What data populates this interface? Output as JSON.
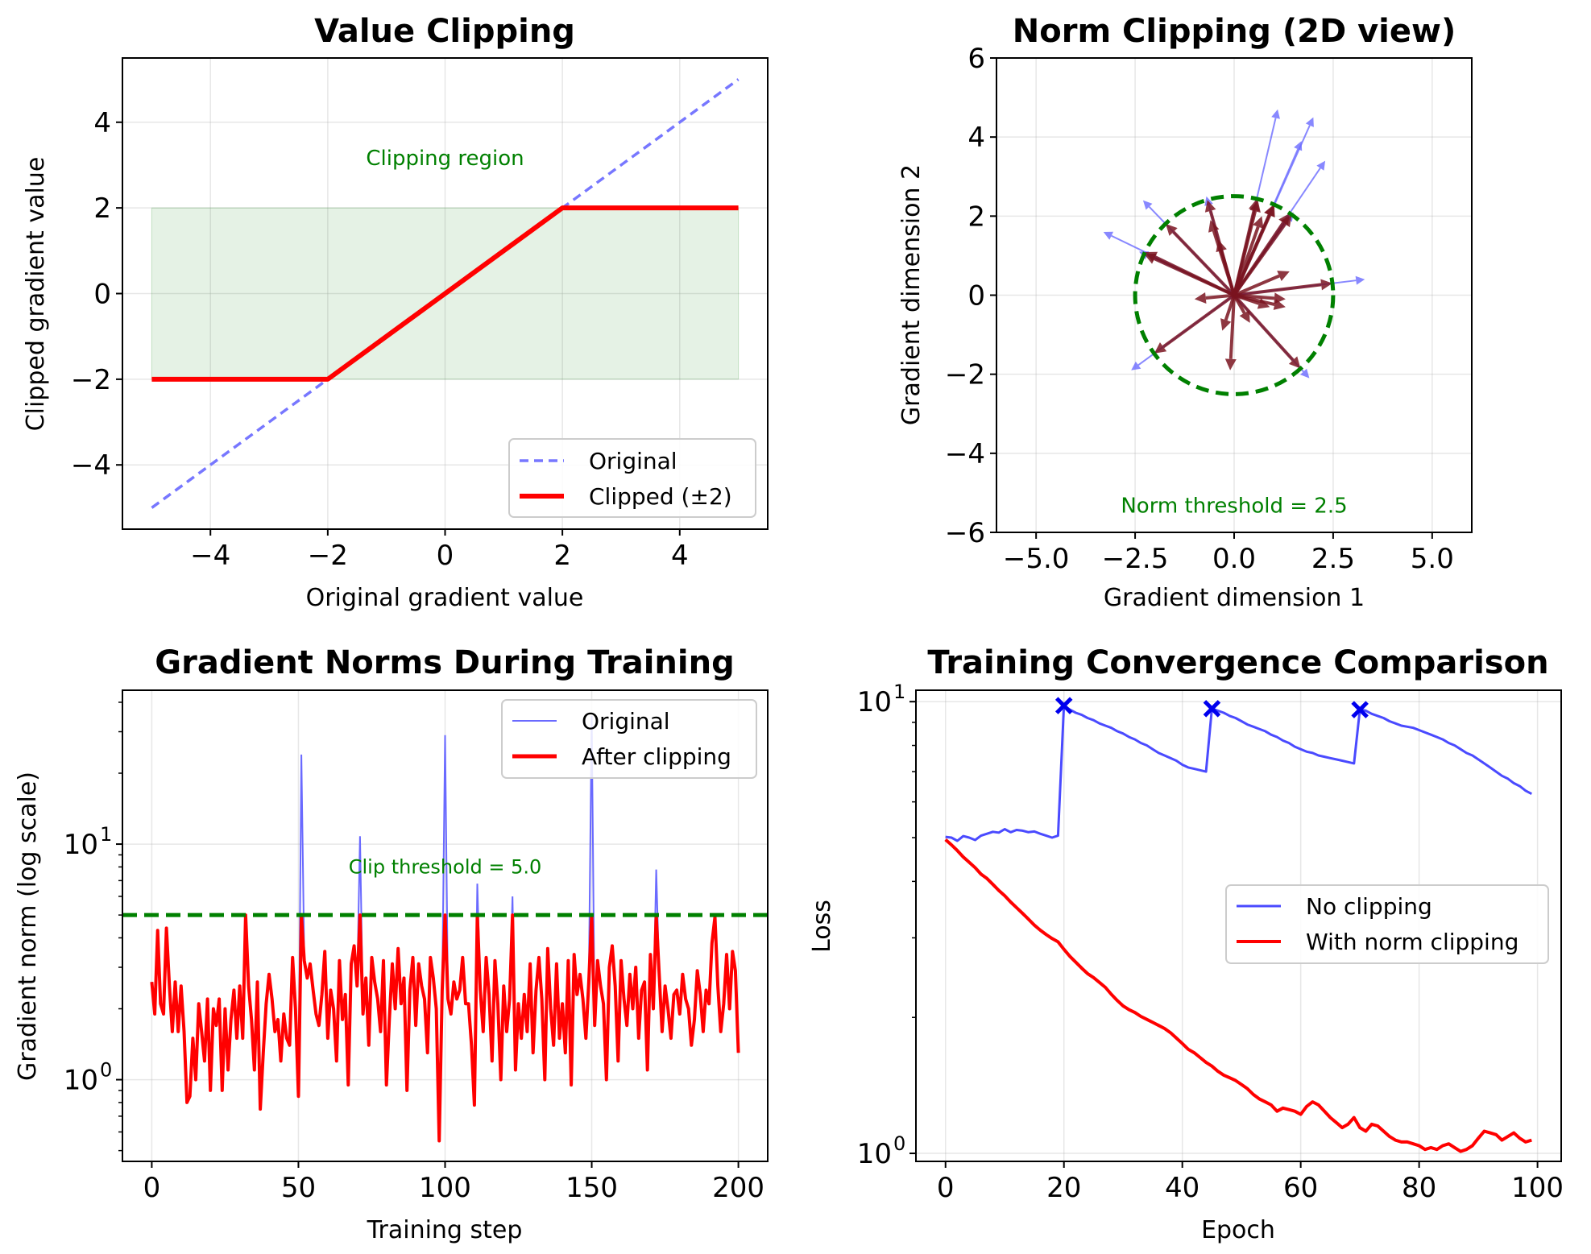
{
  "chart_data": [
    {
      "type": "line",
      "title": "Value Clipping",
      "xlabel": "Original gradient value",
      "ylabel": "Clipped gradient value",
      "xlim": [
        -5.5,
        5.5
      ],
      "ylim": [
        -5.5,
        5.5
      ],
      "xticks": [
        -4,
        -2,
        0,
        2,
        4
      ],
      "yticks": [
        -4,
        -2,
        0,
        2,
        4
      ],
      "xtick_labels": [
        "−4",
        "−2",
        "0",
        "2",
        "4"
      ],
      "ytick_labels": [
        "−4",
        "−2",
        "0",
        "2",
        "4"
      ],
      "shaded_region": {
        "x": [
          -5,
          5
        ],
        "y": [
          -2,
          2
        ],
        "color": "#008000"
      },
      "series": [
        {
          "name": "Original",
          "color": "#7777ff",
          "style": "dashed",
          "x": [
            -5,
            5
          ],
          "y": [
            -5,
            5
          ]
        },
        {
          "name": "Clipped (±2)",
          "color": "#ff0000",
          "style": "solid",
          "x": [
            -5,
            -2,
            2,
            5
          ],
          "y": [
            -2,
            -2,
            2,
            2
          ]
        }
      ],
      "annotation": {
        "text": "Clipping region",
        "x": 0,
        "y": 3.0
      },
      "legend": "bottom-right",
      "grid": true
    },
    {
      "type": "scatter",
      "subtype": "vector-field",
      "title": "Norm Clipping (2D view)",
      "xlabel": "Gradient dimension 1",
      "ylabel": "Gradient dimension 2",
      "xlim": [
        -6,
        6
      ],
      "ylim": [
        -6,
        6
      ],
      "xticks": [
        -5,
        -2.5,
        0,
        2.5,
        5
      ],
      "yticks": [
        -6,
        -4,
        -2,
        0,
        2,
        4,
        6
      ],
      "xtick_labels": [
        "−5.0",
        "−2.5",
        "0.0",
        "2.5",
        "5.0"
      ],
      "ytick_labels": [
        "−6",
        "−4",
        "−2",
        "0",
        "2",
        "4",
        "6"
      ],
      "threshold": 2.5,
      "annotation": {
        "text": "Norm threshold = 2.5",
        "x": 0,
        "y": -5.5
      },
      "original_color": "#6a6aff",
      "clipped_color": "#7a1420",
      "circle_color": "#008000",
      "vectors": [
        [
          1.1,
          4.7
        ],
        [
          2.0,
          4.5
        ],
        [
          1.7,
          3.9
        ],
        [
          2.3,
          3.4
        ],
        [
          -2.3,
          2.4
        ],
        [
          -3.3,
          1.6
        ],
        [
          3.3,
          0.4
        ],
        [
          -2.6,
          -1.9
        ],
        [
          1.9,
          -2.1
        ],
        [
          -0.7,
          2.5
        ],
        [
          -0.6,
          1.9
        ],
        [
          0.6,
          2.4
        ],
        [
          1.5,
          2.1
        ],
        [
          1.4,
          0.6
        ],
        [
          1.3,
          -0.3
        ],
        [
          1.3,
          -0.1
        ],
        [
          -1.0,
          -0.1
        ],
        [
          -0.1,
          -1.9
        ],
        [
          0.4,
          -0.7
        ],
        [
          -0.3,
          -0.9
        ],
        [
          -2.4,
          1.1
        ],
        [
          0.7,
          2.0
        ],
        [
          0.9,
          -0.3
        ],
        [
          -0.4,
          1.4
        ]
      ],
      "grid": true
    },
    {
      "type": "line",
      "title": "Gradient Norms During Training",
      "xlabel": "Training step",
      "ylabel": "Gradient norm (log scale)",
      "yscale": "log",
      "xlim": [
        -10,
        210
      ],
      "ylim": [
        0.45,
        45
      ],
      "xticks": [
        0,
        50,
        100,
        150,
        200
      ],
      "xtick_labels": [
        "0",
        "50",
        "100",
        "150",
        "200"
      ],
      "ytick_major": [
        {
          "value": 1,
          "base": "10",
          "exp": "0"
        },
        {
          "value": 10,
          "base": "10",
          "exp": "1"
        }
      ],
      "clip_threshold": 5.0,
      "annotation": {
        "text": "Clip threshold = 5.0",
        "x": 100,
        "y": 7.5
      },
      "series": [
        {
          "name": "Original",
          "color": "#6a6aff"
        },
        {
          "name": "After clipping",
          "color": "#ff0000"
        }
      ],
      "values": [
        2.6,
        1.9,
        4.3,
        2.1,
        1.9,
        4.4,
        2.5,
        1.6,
        2.6,
        1.6,
        2.5,
        1.6,
        0.8,
        0.85,
        1.5,
        1.0,
        2.1,
        1.6,
        1.2,
        2.2,
        0.9,
        2.0,
        1.7,
        2.2,
        0.9,
        2.0,
        1.1,
        1.8,
        2.4,
        1.5,
        2.5,
        1.5,
        5.0,
        2.5,
        1.8,
        1.1,
        2.6,
        0.75,
        1.3,
        2.1,
        2.8,
        2.2,
        1.6,
        1.8,
        1.2,
        1.9,
        1.5,
        1.4,
        3.3,
        2.0,
        0.85,
        24,
        3.2,
        2.7,
        3.1,
        2.4,
        1.9,
        1.7,
        2.3,
        3.5,
        1.5,
        2.4,
        2.0,
        1.2,
        3.2,
        1.8,
        2.3,
        0.95,
        3.1,
        3.7,
        2.5,
        10.8,
        1.9,
        2.7,
        1.4,
        3.3,
        2.6,
        2.2,
        1.6,
        3.2,
        0.95,
        1.8,
        3.1,
        2.0,
        3.6,
        2.1,
        2.7,
        0.9,
        2.4,
        3.3,
        1.7,
        3.1,
        2.5,
        2.2,
        1.3,
        3.3,
        2.7,
        2.0,
        0.55,
        2.4,
        29,
        2.2,
        1.9,
        2.6,
        2.2,
        2.4,
        3.3,
        2.1,
        2.1,
        1.4,
        0.78,
        6.8,
        2.4,
        1.6,
        3.3,
        2.3,
        1.2,
        3.2,
        2.1,
        1.0,
        2.5,
        1.6,
        2.2,
        6.0,
        1.1,
        2.1,
        1.5,
        2.3,
        1.6,
        3.1,
        1.3,
        2.4,
        3.3,
        2.2,
        1.0,
        3.6,
        2.0,
        1.4,
        3.1,
        1.5,
        2.1,
        1.3,
        3.2,
        0.95,
        3.4,
        2.3,
        2.8,
        2.2,
        1.5,
        2.6,
        35,
        1.7,
        3.2,
        2.5,
        2.1,
        1.0,
        3.0,
        3.7,
        2.5,
        1.2,
        3.2,
        2.2,
        1.7,
        2.8,
        2.0,
        3.0,
        1.5,
        2.4,
        2.6,
        1.1,
        3.4,
        2.0,
        7.8,
        2.8,
        1.6,
        2.5,
        2.0,
        1.5,
        2.3,
        2.4,
        1.9,
        2.8,
        2.2,
        2.0,
        1.4,
        1.8,
        2.9,
        2.3,
        1.6,
        2.4,
        2.1,
        3.8,
        4.9,
        2.5,
        1.6,
        2.1,
        3.4,
        2.0,
        3.5,
        2.9,
        1.3
      ],
      "legend": "top-right",
      "grid": true
    },
    {
      "type": "line",
      "title": "Training Convergence Comparison",
      "xlabel": "Epoch",
      "ylabel": "Loss",
      "yscale": "log",
      "xlim": [
        -5,
        104
      ],
      "ylim": [
        0.96,
        10.6
      ],
      "xticks": [
        0,
        20,
        40,
        60,
        80,
        100
      ],
      "xtick_labels": [
        "0",
        "20",
        "40",
        "60",
        "80",
        "100"
      ],
      "ytick_major": [
        {
          "value": 1,
          "base": "10",
          "exp": "0"
        },
        {
          "value": 10,
          "base": "10",
          "exp": "1"
        }
      ],
      "spike_epochs": [
        20,
        45,
        70
      ],
      "series": [
        {
          "name": "No clipping",
          "color": "#4a4aff",
          "values": [
            5.02,
            5.0,
            4.92,
            5.04,
            5.0,
            4.94,
            5.05,
            5.1,
            5.15,
            5.13,
            5.22,
            5.14,
            5.2,
            5.18,
            5.14,
            5.16,
            5.1,
            5.05,
            5.0,
            5.05,
            9.8,
            9.6,
            9.45,
            9.35,
            9.2,
            9.1,
            8.95,
            8.85,
            8.75,
            8.6,
            8.5,
            8.35,
            8.25,
            8.1,
            8.0,
            7.85,
            7.7,
            7.6,
            7.5,
            7.4,
            7.25,
            7.15,
            7.1,
            7.05,
            7.0,
            9.65,
            9.55,
            9.45,
            9.3,
            9.2,
            9.05,
            8.9,
            8.8,
            8.7,
            8.6,
            8.45,
            8.35,
            8.2,
            8.1,
            7.95,
            7.85,
            7.75,
            7.7,
            7.6,
            7.55,
            7.5,
            7.45,
            7.4,
            7.35,
            7.3,
            9.6,
            9.55,
            9.4,
            9.3,
            9.2,
            9.05,
            8.95,
            8.85,
            8.8,
            8.75,
            8.65,
            8.55,
            8.45,
            8.35,
            8.25,
            8.1,
            8.0,
            7.85,
            7.7,
            7.6,
            7.45,
            7.3,
            7.15,
            7.0,
            6.85,
            6.75,
            6.6,
            6.5,
            6.35,
            6.25
          ]
        },
        {
          "name": "With norm clipping",
          "color": "#ff0000",
          "values": [
            4.95,
            4.82,
            4.68,
            4.53,
            4.41,
            4.29,
            4.15,
            4.06,
            3.94,
            3.82,
            3.72,
            3.6,
            3.5,
            3.4,
            3.3,
            3.2,
            3.12,
            3.05,
            2.99,
            2.94,
            2.83,
            2.73,
            2.65,
            2.57,
            2.5,
            2.45,
            2.39,
            2.33,
            2.25,
            2.18,
            2.12,
            2.08,
            2.05,
            2.01,
            1.98,
            1.95,
            1.92,
            1.89,
            1.85,
            1.8,
            1.75,
            1.7,
            1.67,
            1.63,
            1.59,
            1.56,
            1.52,
            1.49,
            1.47,
            1.45,
            1.42,
            1.39,
            1.35,
            1.32,
            1.3,
            1.28,
            1.24,
            1.26,
            1.25,
            1.24,
            1.22,
            1.27,
            1.3,
            1.28,
            1.24,
            1.2,
            1.17,
            1.14,
            1.16,
            1.2,
            1.14,
            1.12,
            1.16,
            1.15,
            1.12,
            1.09,
            1.07,
            1.06,
            1.06,
            1.05,
            1.04,
            1.02,
            1.03,
            1.02,
            1.04,
            1.05,
            1.03,
            1.01,
            1.02,
            1.04,
            1.08,
            1.12,
            1.11,
            1.1,
            1.07,
            1.09,
            1.11,
            1.08,
            1.06,
            1.07
          ]
        }
      ],
      "legend": "center-right",
      "grid": true
    }
  ]
}
